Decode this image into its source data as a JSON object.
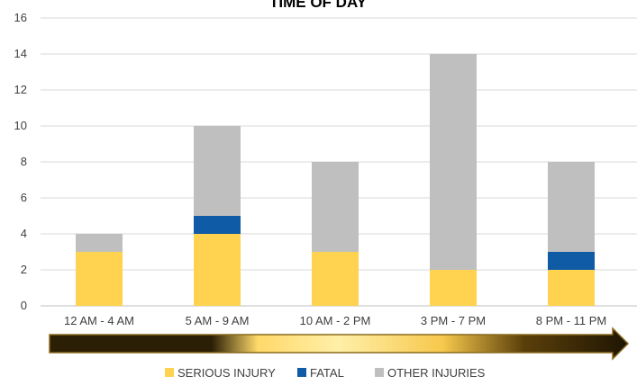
{
  "chart_data": {
    "type": "bar",
    "stacked": true,
    "title": "TIME OF DAY",
    "categories": [
      "12 AM - 4 AM",
      "5 AM - 9 AM",
      "10 AM - 2 PM",
      "3 PM - 7 PM",
      "8 PM - 11 PM"
    ],
    "series": [
      {
        "name": "SERIOUS INJURY",
        "values": [
          3,
          4,
          3,
          2,
          2
        ],
        "color": "#FFD24F"
      },
      {
        "name": "FATAL",
        "values": [
          0,
          1,
          0,
          0,
          1
        ],
        "color": "#0F5BA6"
      },
      {
        "name": "OTHER INJURIES",
        "values": [
          1,
          5,
          5,
          12,
          5
        ],
        "color": "#BFBFBF"
      }
    ],
    "ylim": [
      0,
      16
    ],
    "yticks": [
      0,
      2,
      4,
      6,
      8,
      10,
      12,
      14,
      16
    ],
    "grid": true,
    "legend_position": "bottom",
    "xlabel": "",
    "ylabel": ""
  },
  "timeline_arrow": {
    "gradient_colors": [
      "#2B1F05",
      "#FFE98A",
      "#F5C24A",
      "#2B1F05"
    ]
  }
}
